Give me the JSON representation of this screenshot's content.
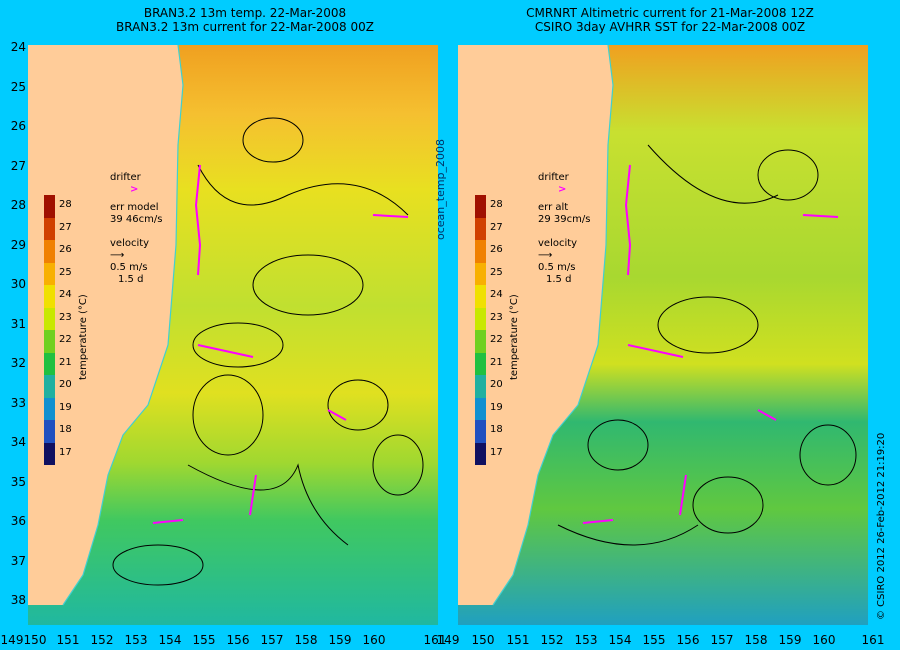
{
  "left_panel": {
    "title_line1": "BRAN3.2 13m temp. 22-Mar-2008",
    "title_line2": "BRAN3.2 13m current for 22-Mar-2008 00Z",
    "legend": {
      "drifter": "drifter",
      "drifter_marker": ">",
      "err_label": "err model",
      "err_value": "39 46cm/s",
      "velocity": "velocity",
      "velocity_scale": "0.5 m/s",
      "velocity_time": "1.5 d"
    }
  },
  "right_panel": {
    "title_line1": "CMRNRT Altimetric current for 21-Mar-2008 12Z",
    "title_line2": "CSIRO 3day AVHRR SST for 22-Mar-2008 00Z",
    "legend": {
      "drifter": "drifter",
      "drifter_marker": ">",
      "err_label": "err alt",
      "err_value": "29 39cm/s",
      "velocity": "velocity",
      "velocity_scale": "0.5 m/s",
      "velocity_time": "1.5 d"
    }
  },
  "colorbar": {
    "label": "temperature (°C)",
    "ticks": [
      "28",
      "27",
      "26",
      "25",
      "24",
      "23",
      "22",
      "21",
      "20",
      "19",
      "18",
      "17"
    ],
    "colors": [
      "#a01000",
      "#d04000",
      "#f08000",
      "#f8b000",
      "#f0e000",
      "#c8e800",
      "#70d020",
      "#20c040",
      "#20b0a0",
      "#1090d0",
      "#2050c0",
      "#101060"
    ]
  },
  "axes": {
    "y_ticks": [
      "24",
      "25",
      "26",
      "27",
      "28",
      "29",
      "30",
      "31",
      "32",
      "33",
      "34",
      "35",
      "36",
      "37",
      "38"
    ],
    "x_ticks": [
      "149",
      "150",
      "151",
      "152",
      "153",
      "154",
      "155",
      "156",
      "157",
      "158",
      "159",
      "160",
      "161"
    ]
  },
  "middle_label": "ocean_temp_2008",
  "credit": "© CSIRO 2012  26-Feb-2012 21:19:20",
  "colors": {
    "background": "#00ccff",
    "land": "#ffcc99",
    "drifter": "#ff00ff"
  }
}
